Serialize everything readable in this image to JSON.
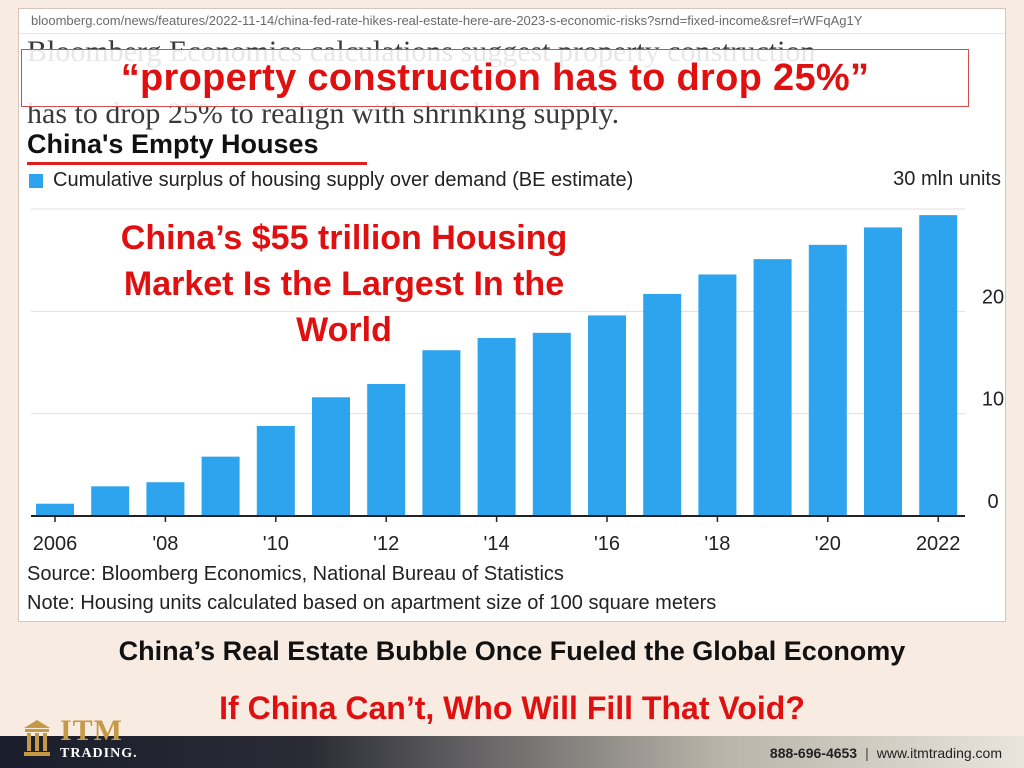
{
  "url": "bloomberg.com/news/features/2022-11-14/china-fed-rate-hikes-real-estate-here-are-2023-s-economic-risks?srnd=fixed-income&sref=rWFqAg1Y",
  "article_text": {
    "line1": "Bloomberg Economics calculations suggest property construction",
    "line2": "has to drop 25% to realign with shrinking supply."
  },
  "callout": "“property construction has to drop 25%”",
  "overlay": {
    "line1": "China’s $55 trillion Housing",
    "line2": "Market Is the Largest In the",
    "line3": "World"
  },
  "chart_data": {
    "type": "bar",
    "title": "China's Empty Houses",
    "series": [
      {
        "name": "Cumulative surplus of housing supply over demand (BE estimate)",
        "color": "#2ea3ee",
        "values": [
          1.2,
          2.9,
          3.3,
          5.8,
          8.8,
          11.6,
          12.9,
          16.2,
          17.4,
          17.9,
          19.6,
          21.7,
          23.6,
          25.1,
          26.5,
          28.2,
          29.4
        ]
      }
    ],
    "categories": [
      "2006",
      "2007",
      "2008",
      "2009",
      "2010",
      "2011",
      "2012",
      "2013",
      "2014",
      "2015",
      "2016",
      "2017",
      "2018",
      "2019",
      "2020",
      "2021",
      "2022"
    ],
    "x_tick_labels": [
      {
        "at": "2006",
        "label": "2006"
      },
      {
        "at": "2008",
        "label": "'08"
      },
      {
        "at": "2010",
        "label": "'10"
      },
      {
        "at": "2012",
        "label": "'12"
      },
      {
        "at": "2014",
        "label": "'14"
      },
      {
        "at": "2016",
        "label": "'16"
      },
      {
        "at": "2018",
        "label": "'18"
      },
      {
        "at": "2020",
        "label": "'20"
      },
      {
        "at": "2022",
        "label": "2022"
      }
    ],
    "y_ticks": [
      0,
      10,
      20
    ],
    "y_top_label": "30 mln units",
    "ylim": [
      0,
      30
    ],
    "y_axis_side": "right",
    "grid": true,
    "legend_position": "top-left",
    "source": "Source: Bloomberg Economics, National Bureau of Statistics",
    "note": "Note: Housing units calculated based on apartment size of 100 square meters"
  },
  "banner_line1": "China’s Real Estate Bubble Once Fueled the Global Economy",
  "banner_line2": "If China Can’t, Who Will Fill That Void?",
  "logo": {
    "title": "ITM",
    "subtitle": "TRADING."
  },
  "contact": {
    "phone": "888-696-4653",
    "separator": "|",
    "website": "www.itmtrading.com"
  },
  "colors": {
    "accent_red": "#e01010",
    "bar_blue": "#2ea3ee",
    "logo_gold": "#c59a47"
  },
  "icons": [
    "logo-pillar-icon",
    "legend-square-icon"
  ]
}
